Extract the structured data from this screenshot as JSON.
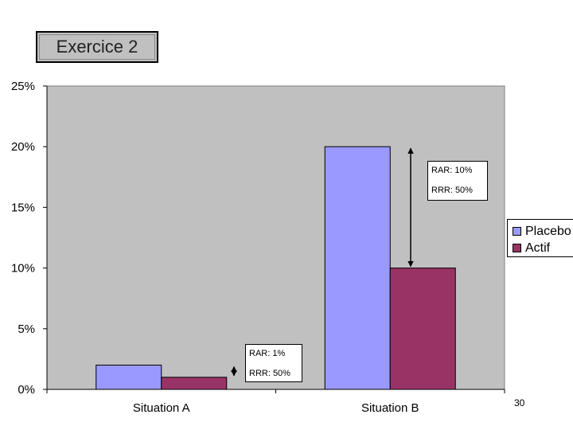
{
  "slide": {
    "title": "Exercice 2",
    "page_number": "30"
  },
  "colors": {
    "placebo": "#9999ff",
    "actif": "#993366",
    "plot_bg": "#c0c0c0"
  },
  "chart_data": {
    "type": "bar",
    "title": "",
    "xlabel": "",
    "ylabel": "",
    "categories": [
      "Situation A",
      "Situation B"
    ],
    "series": [
      {
        "name": "Placebo",
        "values": [
          2,
          20
        ]
      },
      {
        "name": "Actif",
        "values": [
          1,
          10
        ]
      }
    ],
    "y_ticks": [
      "0%",
      "5%",
      "10%",
      "15%",
      "20%",
      "25%"
    ],
    "ylim": [
      0,
      25
    ],
    "grid": false,
    "legend": "right",
    "annotations": [
      {
        "category": "Situation A",
        "lines": [
          "RAR: 1%",
          "RRR: 50%"
        ]
      },
      {
        "category": "Situation B",
        "lines": [
          "RAR: 10%",
          "RRR: 50%"
        ]
      }
    ]
  }
}
